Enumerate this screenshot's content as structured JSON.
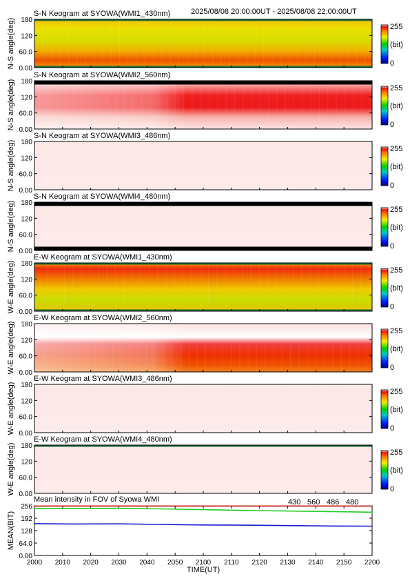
{
  "header": {
    "time_range": "2025/08/08 20:00:00UT - 2025/08/08 22:00:00UT"
  },
  "colorbar": {
    "max": "255",
    "unit": "(bit)",
    "min": "0"
  },
  "chart_data": [
    {
      "type": "heatmap",
      "title": "S-N Keogram at SYOWA(WMI1_430nm)",
      "ylabel": "N-S angle(deg)",
      "yticks": [
        "180",
        "120",
        "60.0",
        "0.00"
      ],
      "ylim": [
        0,
        180
      ],
      "xlim": [
        2000,
        2200
      ],
      "appearance": "yellow-orange",
      "missing_top": "thin",
      "missing_bottom": "thin"
    },
    {
      "type": "heatmap",
      "title": "S-N Keogram at SYOWA(WMI2_560nm)",
      "ylabel": "N-S angle(deg)",
      "yticks": [
        "180",
        "120",
        "60.0",
        "0.00"
      ],
      "ylim": [
        0,
        180
      ],
      "xlim": [
        2000,
        2200
      ],
      "appearance": "red",
      "missing_top": "thick",
      "missing_bottom": "none"
    },
    {
      "type": "heatmap",
      "title": "S-N Keogram at SYOWA(WMI3_486nm)",
      "ylabel": "N-S angle(deg)",
      "yticks": [
        "180",
        "120",
        "60.0",
        "0.00"
      ],
      "ylim": [
        0,
        180
      ],
      "xlim": [
        2000,
        2200
      ],
      "appearance": "saturated",
      "missing_top": "none",
      "missing_bottom": "none"
    },
    {
      "type": "heatmap",
      "title": "S-N Keogram at SYOWA(WMI4_480nm)",
      "ylabel": "N-S angle(deg)",
      "yticks": [
        "180",
        "120",
        "60.0",
        "0.00"
      ],
      "ylim": [
        0,
        180
      ],
      "xlim": [
        2000,
        2200
      ],
      "appearance": "saturated",
      "missing_top": "thick",
      "missing_bottom": "thick"
    },
    {
      "type": "heatmap",
      "title": "E-W Keogram at SYOWA(WMI1_430nm)",
      "ylabel": "W-E angle(deg)",
      "yticks": [
        "180",
        "120",
        "60.0",
        "0.00"
      ],
      "ylim": [
        0,
        180
      ],
      "xlim": [
        2000,
        2200
      ],
      "appearance": "yellow-red",
      "missing_top": "thin",
      "missing_bottom": "thin"
    },
    {
      "type": "heatmap",
      "title": "E-W Keogram at SYOWA(WMI2_560nm)",
      "ylabel": "W-E angle(deg)",
      "yticks": [
        "180",
        "120",
        "60.0",
        "0.00"
      ],
      "ylim": [
        0,
        180
      ],
      "xlim": [
        2000,
        2200
      ],
      "appearance": "red-white",
      "missing_top": "none",
      "missing_bottom": "none"
    },
    {
      "type": "heatmap",
      "title": "E-W Keogram at SYOWA(WMI3_486nm)",
      "ylabel": "W-E angle(deg)",
      "yticks": [
        "180",
        "120",
        "60.0",
        "0.00"
      ],
      "ylim": [
        0,
        180
      ],
      "xlim": [
        2000,
        2200
      ],
      "appearance": "saturated",
      "missing_top": "none",
      "missing_bottom": "none"
    },
    {
      "type": "heatmap",
      "title": "E-W Keogram at SYOWA(WMI4_480nm)",
      "ylabel": "W-E angle(deg)",
      "yticks": [
        "180",
        "120",
        "60.0",
        "0.00"
      ],
      "ylim": [
        0,
        180
      ],
      "xlim": [
        2000,
        2200
      ],
      "appearance": "saturated",
      "missing_top": "thin",
      "missing_bottom": "none"
    },
    {
      "type": "line",
      "title": "Mean intensity in FOV of Syowa WMI",
      "ylabel": "MEAN(BIT)",
      "xlabel": "TIME(UT)",
      "yticks": [
        "256",
        "192",
        "128",
        "64.0",
        "0.00"
      ],
      "ylim": [
        0,
        256
      ],
      "x_ticks": [
        "2000",
        "2010",
        "2020",
        "2030",
        "2040",
        "2050",
        "2100",
        "2110",
        "2120",
        "2130",
        "2140",
        "2150",
        "2200"
      ],
      "x_minutes": [
        0,
        15,
        30,
        45,
        60,
        75,
        90,
        105,
        120
      ],
      "series": [
        {
          "name": "430",
          "color": "#1a1acc",
          "values": [
            164,
            162,
            163,
            160,
            157,
            156,
            154,
            152,
            151
          ]
        },
        {
          "name": "560",
          "color": "#22cc22",
          "values": [
            241,
            242,
            243,
            240,
            236,
            232,
            229,
            226,
            223
          ]
        },
        {
          "name": "486",
          "color": "#cc2222",
          "values": [
            255,
            255,
            255,
            255,
            255,
            255,
            255,
            255,
            255
          ]
        },
        {
          "name": "480",
          "color": "#000000",
          "values": [
            255,
            255,
            255,
            255,
            255,
            255,
            255,
            255,
            255
          ]
        }
      ]
    }
  ]
}
